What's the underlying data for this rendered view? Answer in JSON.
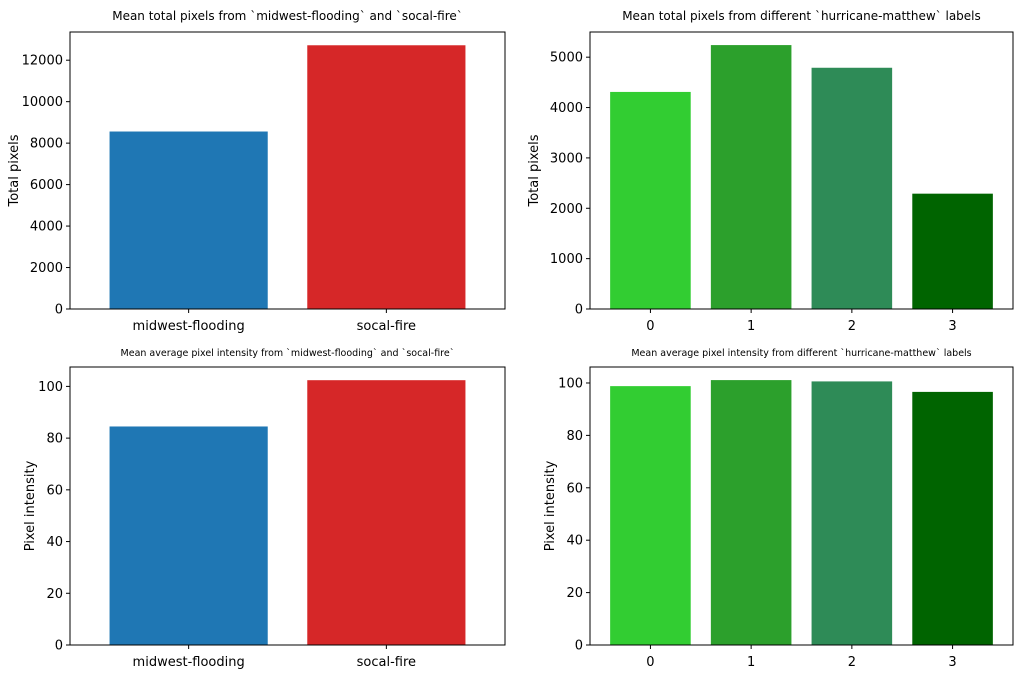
{
  "chart_data": [
    {
      "type": "bar",
      "title": "Mean total pixels from `midwest-flooding` and `socal-fire`",
      "xlabel": "",
      "ylabel": "Total pixels",
      "categories": [
        "midwest-flooding",
        "socal-fire"
      ],
      "values": [
        8560,
        12720
      ],
      "colors": [
        "#1f77b4",
        "#d62728"
      ],
      "ylim": [
        0,
        13360
      ],
      "yticks": [
        0,
        2000,
        4000,
        6000,
        8000,
        10000,
        12000
      ],
      "grid": false
    },
    {
      "type": "bar",
      "title": "Mean total pixels from different `hurricane-matthew` labels",
      "xlabel": "",
      "ylabel": "Total pixels",
      "categories": [
        "0",
        "1",
        "2",
        "3"
      ],
      "values": [
        4310,
        5240,
        4790,
        2290
      ],
      "colors": [
        "#32cd32",
        "#2ca02c",
        "#2e8b57",
        "#006400"
      ],
      "ylim": [
        0,
        5500
      ],
      "yticks": [
        0,
        1000,
        2000,
        3000,
        4000,
        5000
      ],
      "grid": false
    },
    {
      "type": "bar",
      "title": "Mean average pixel intensity from `midwest-flooding` and `socal-fire`",
      "xlabel": "",
      "ylabel": "Pixel intensity",
      "categories": [
        "midwest-flooding",
        "socal-fire"
      ],
      "values": [
        84.5,
        102.4
      ],
      "colors": [
        "#1f77b4",
        "#d62728"
      ],
      "ylim": [
        0,
        107.5
      ],
      "yticks": [
        0,
        20,
        40,
        60,
        80,
        100
      ],
      "grid": false
    },
    {
      "type": "bar",
      "title": "Mean average pixel intensity from different `hurricane-matthew` labels",
      "xlabel": "",
      "ylabel": "Pixel intensity",
      "categories": [
        "0",
        "1",
        "2",
        "3"
      ],
      "values": [
        98.8,
        101.1,
        100.6,
        96.6
      ],
      "colors": [
        "#32cd32",
        "#2ca02c",
        "#2e8b57",
        "#006400"
      ],
      "ylim": [
        0,
        106.1
      ],
      "yticks": [
        0,
        20,
        40,
        60,
        80,
        100
      ],
      "grid": false
    }
  ]
}
